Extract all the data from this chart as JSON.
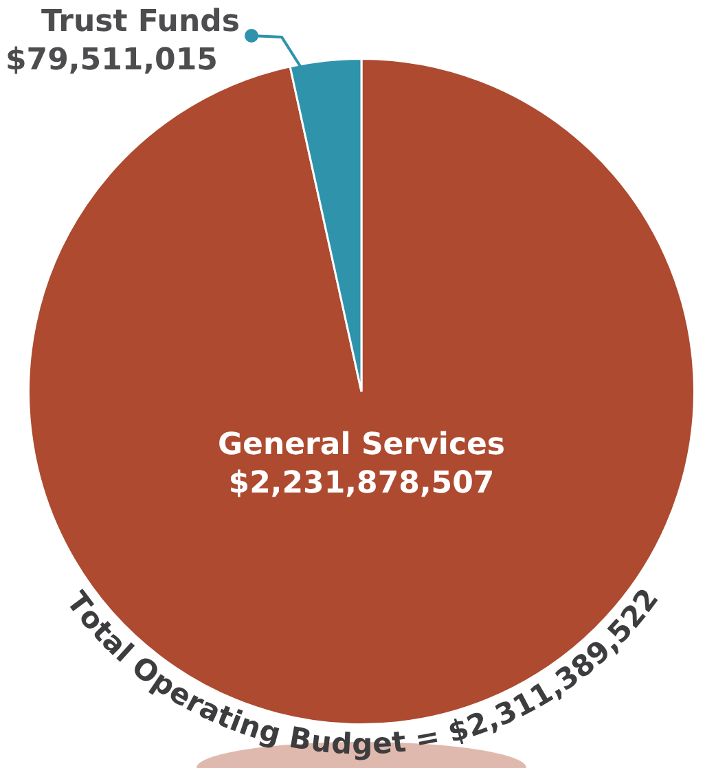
{
  "chart_data": {
    "type": "pie",
    "categories": [
      "General Services",
      "Trust Funds"
    ],
    "values": [
      2231878507,
      79511015
    ],
    "colors": [
      "#ad4a30",
      "#2e93ab"
    ],
    "value_labels": [
      "$2,231,878,507",
      "$79,511,015"
    ],
    "annotations": [
      "Total Operating Budget = $2,311,389,522"
    ]
  }
}
